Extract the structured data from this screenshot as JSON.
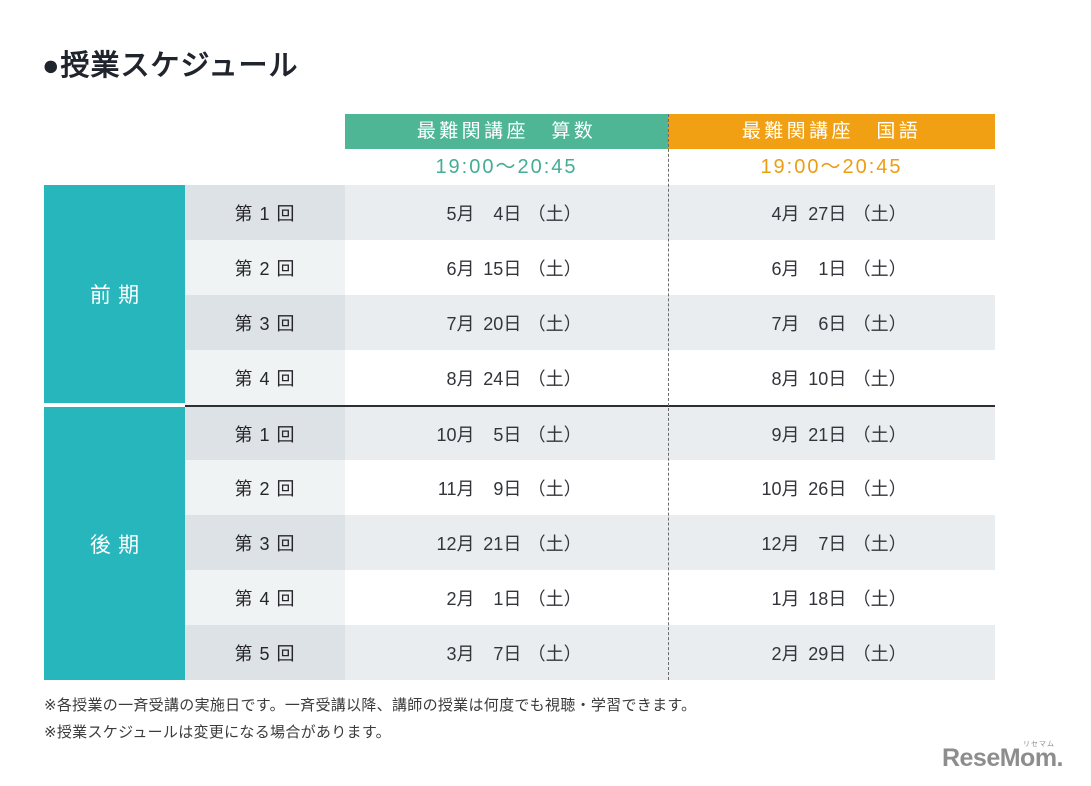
{
  "page": {
    "title": "●授業スケジュール"
  },
  "table": {
    "columns": [
      {
        "label": "最難関講座　算数",
        "time": "19:00〜20:45",
        "header_color": "#4eb695",
        "time_color": "#44ad93"
      },
      {
        "label": "最難関講座　国語",
        "time": "19:00〜20:45",
        "header_color": "#f0a012",
        "time_color": "#eb9d14"
      }
    ],
    "periods": [
      {
        "label": "前期",
        "rows": 4
      },
      {
        "label": "後期",
        "rows": 5
      }
    ],
    "rows": [
      {
        "round": "第 1 回",
        "math": {
          "month": "5月",
          "day": "4日",
          "week": "（土）"
        },
        "japanese": {
          "month": "4月",
          "day": "27日",
          "week": "（土）"
        }
      },
      {
        "round": "第 2 回",
        "math": {
          "month": "6月",
          "day": "15日",
          "week": "（土）"
        },
        "japanese": {
          "month": "6月",
          "day": "1日",
          "week": "（土）"
        }
      },
      {
        "round": "第 3 回",
        "math": {
          "month": "7月",
          "day": "20日",
          "week": "（土）"
        },
        "japanese": {
          "month": "7月",
          "day": "6日",
          "week": "（土）"
        }
      },
      {
        "round": "第 4 回",
        "math": {
          "month": "8月",
          "day": "24日",
          "week": "（土）"
        },
        "japanese": {
          "month": "8月",
          "day": "10日",
          "week": "（土）"
        }
      },
      {
        "round": "第 1 回",
        "math": {
          "month": "10月",
          "day": "5日",
          "week": "（土）"
        },
        "japanese": {
          "month": "9月",
          "day": "21日",
          "week": "（土）"
        }
      },
      {
        "round": "第 2 回",
        "math": {
          "month": "11月",
          "day": "9日",
          "week": "（土）"
        },
        "japanese": {
          "month": "10月",
          "day": "26日",
          "week": "（土）"
        }
      },
      {
        "round": "第 3 回",
        "math": {
          "month": "12月",
          "day": "21日",
          "week": "（土）"
        },
        "japanese": {
          "month": "12月",
          "day": "7日",
          "week": "（土）"
        }
      },
      {
        "round": "第 4 回",
        "math": {
          "month": "2月",
          "day": "1日",
          "week": "（土）"
        },
        "japanese": {
          "month": "1月",
          "day": "18日",
          "week": "（土）"
        }
      },
      {
        "round": "第 5 回",
        "math": {
          "month": "3月",
          "day": "7日",
          "week": "（土）"
        },
        "japanese": {
          "month": "2月",
          "day": "29日",
          "week": "（土）"
        }
      }
    ],
    "colors": {
      "period_teal": "#26b6bb",
      "row_stripe": "#e9edef",
      "round_stripe": "#dce2e5",
      "section_divider": "#2e2e34"
    }
  },
  "notes": [
    "※各授業の一斉受講の実施日です。一斉受講以降、講師の授業は何度でも視聴・学習できます。",
    "※授業スケジュールは変更になる場合があります。"
  ],
  "logo": {
    "text": "ReseMom.",
    "ruby": "リセマム"
  }
}
